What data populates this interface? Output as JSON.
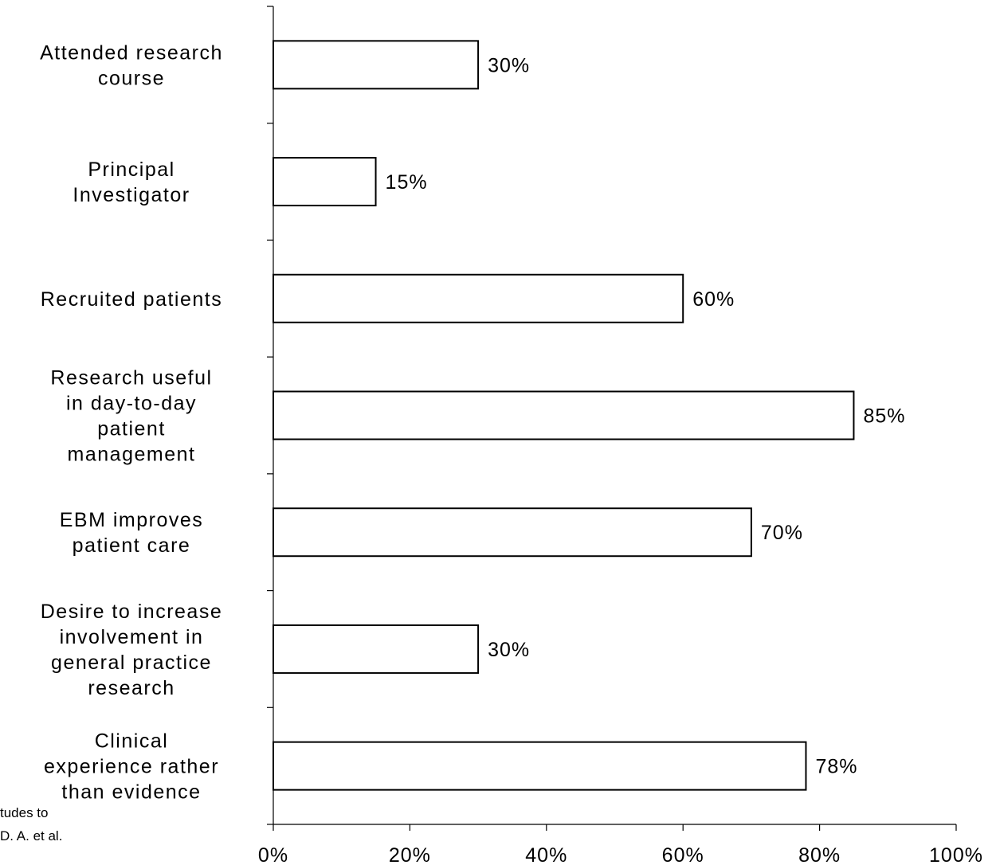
{
  "footnotes": [
    "tudes to",
    "D. A. et al."
  ],
  "chart_data": {
    "type": "bar",
    "orientation": "horizontal",
    "categories": [
      [
        "Attended research",
        "course"
      ],
      [
        "Principal",
        "Investigator"
      ],
      [
        "Recruited patients"
      ],
      [
        "Research useful",
        "in day-to-day",
        "patient",
        "management"
      ],
      [
        "EBM improves",
        "patient care"
      ],
      [
        "Desire to increase",
        "involvement in",
        "general practice",
        "research"
      ],
      [
        "Clinical",
        "experience rather",
        "than evidence"
      ]
    ],
    "values": [
      30,
      15,
      60,
      85,
      70,
      30,
      78
    ],
    "value_labels": [
      "30%",
      "15%",
      "60%",
      "85%",
      "70%",
      "30%",
      "78%"
    ],
    "xlim": [
      0,
      100
    ],
    "xticks": [
      "0%",
      "20%",
      "40%",
      "60%",
      "80%",
      "100%"
    ],
    "grid": false,
    "bar_fill": "#ffffff",
    "bar_stroke": "#000000"
  }
}
